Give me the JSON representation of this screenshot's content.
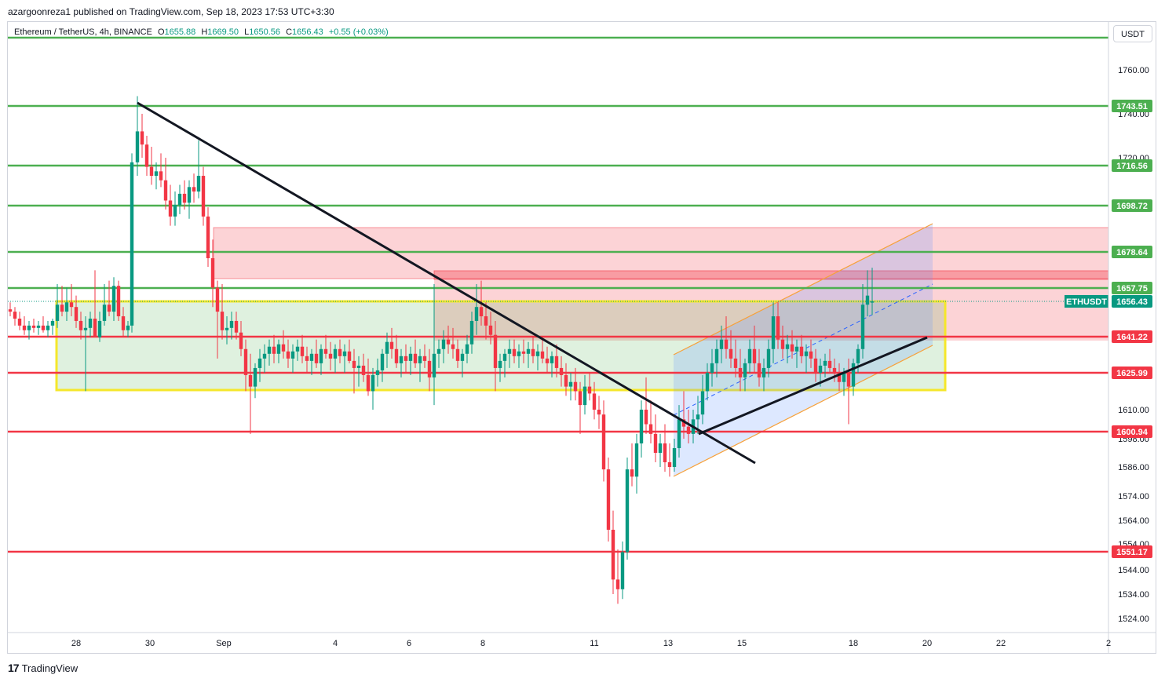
{
  "header": {
    "publisher_line": "azargoonreza1 published on TradingView.com, Sep 18, 2023 17:53 UTC+3:30"
  },
  "legend": {
    "symbol": "Ethereum / TetherUS, 4h, BINANCE",
    "open": "1655.88",
    "high": "1669.50",
    "low": "1650.56",
    "close": "1656.43",
    "change": "+0.55 (+0.03%)"
  },
  "currency": "USDT",
  "footer": {
    "brand": "TradingView"
  },
  "chart_data": {
    "type": "candlestick",
    "symbol": "ETHUSDT",
    "timeframe": "4h",
    "x_ticks": [
      "28",
      "30",
      "Sep",
      "4",
      "6",
      "8",
      "11",
      "13",
      "15",
      "18",
      "20",
      "22",
      "2"
    ],
    "y_ticks": [
      1760,
      1740,
      1720,
      1610,
      1598,
      1586,
      1574,
      1564,
      1554,
      1544,
      1534,
      1524
    ],
    "y_tick_labels": [
      "1760.00",
      "1740.00",
      "1720.00",
      "1610.00",
      "1598.00",
      "1586.00",
      "1574.00",
      "1564.00",
      "1554.00",
      "1544.00",
      "1534.00",
      "1524.00"
    ],
    "current_price": {
      "label": "ETHUSDT",
      "value": "1656.43"
    },
    "levels": [
      {
        "value": "1743.51",
        "color": "#4caf50"
      },
      {
        "value": "1716.56",
        "color": "#4caf50"
      },
      {
        "value": "1698.72",
        "color": "#4caf50"
      },
      {
        "value": "1678.64",
        "color": "#4caf50"
      },
      {
        "value": "1657.75",
        "color": "#4caf50"
      },
      {
        "value": "1641.22",
        "color": "#f23645"
      },
      {
        "value": "1625.99",
        "color": "#f23645"
      },
      {
        "value": "1600.94",
        "color": "#f23645"
      },
      {
        "value": "1551.17",
        "color": "#f23645"
      }
    ],
    "colors": {
      "up": "#089981",
      "down": "#f23645",
      "support": "#f23645",
      "resistance": "#4caf50",
      "range_box": "#f5e72b",
      "channel": "#f7a13a"
    }
  }
}
